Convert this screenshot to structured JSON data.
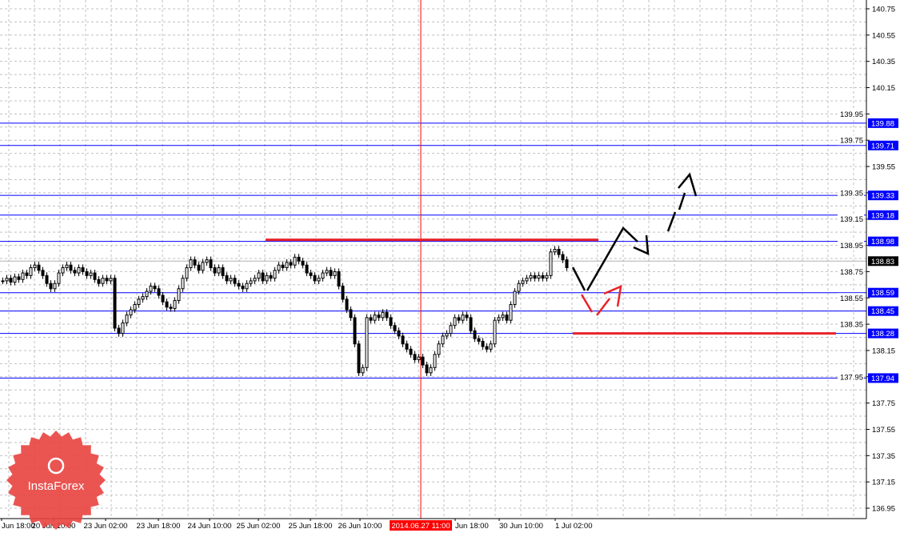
{
  "logo": {
    "text": "InstaForex",
    "color": "#e8423f"
  },
  "chart_data": {
    "type": "candlestick",
    "title": "",
    "y_ticks": [
      "140.75",
      "140.55",
      "140.35",
      "140.15",
      "139.95",
      "139.75",
      "139.55",
      "139.35",
      "139.15",
      "138.95",
      "138.75",
      "138.55",
      "138.35",
      "138.15",
      "137.95",
      "137.75",
      "137.55",
      "137.35",
      "137.15",
      "136.95"
    ],
    "ylim": [
      136.95,
      140.75
    ],
    "x_ticks": [
      "Jun 18:00",
      "20 Jun 10:00",
      "23 Jun 02:00",
      "23 Jun 18:00",
      "24 Jun 10:00",
      "25 Jun 02:00",
      "25 Jun 18:00",
      "26 Jun 10:00",
      "Jun 18:00",
      "30 Jun 10:00",
      "1 Jul 02:00"
    ],
    "cursor_time": "2014.06.27 11:00",
    "current_price": "138.83",
    "levels": [
      "139.88",
      "139.71",
      "139.33",
      "139.18",
      "138.98",
      "138.59",
      "138.45",
      "138.28",
      "137.94"
    ],
    "level_color": "#0000ff",
    "drawn_resistance": 138.98,
    "drawn_support": 138.28,
    "drawing_color": "#e8232a",
    "grid": true,
    "closes": [
      138.68,
      138.7,
      138.67,
      138.71,
      138.69,
      138.74,
      138.72,
      138.78,
      138.8,
      138.76,
      138.72,
      138.66,
      138.62,
      138.66,
      138.74,
      138.78,
      138.8,
      138.76,
      138.74,
      138.78,
      138.75,
      138.72,
      138.74,
      138.69,
      138.66,
      138.7,
      138.68,
      138.7,
      138.32,
      138.28,
      138.36,
      138.42,
      138.46,
      138.5,
      138.54,
      138.56,
      138.6,
      138.64,
      138.62,
      138.57,
      138.52,
      138.48,
      138.47,
      138.53,
      138.62,
      138.7,
      138.78,
      138.84,
      138.8,
      138.76,
      138.82,
      138.84,
      138.78,
      138.74,
      138.78,
      138.72,
      138.68,
      138.7,
      138.66,
      138.64,
      138.62,
      138.66,
      138.68,
      138.7,
      138.74,
      138.68,
      138.72,
      138.7,
      138.76,
      138.8,
      138.78,
      138.82,
      138.8,
      138.86,
      138.83,
      138.8,
      138.74,
      138.72,
      138.68,
      138.7,
      138.74,
      138.76,
      138.72,
      138.75,
      138.64,
      138.54,
      138.46,
      138.4,
      138.2,
      137.98,
      138.02,
      138.4,
      138.38,
      138.42,
      138.4,
      138.44,
      138.4,
      138.34,
      138.3,
      138.26,
      138.2,
      138.16,
      138.12,
      138.08,
      138.1,
      138.04,
      137.98,
      138.02,
      138.12,
      138.2,
      138.26,
      138.28,
      138.34,
      138.4,
      138.38,
      138.42,
      138.4,
      138.3,
      138.24,
      138.22,
      138.18,
      138.16,
      138.2,
      138.38,
      138.4,
      138.42,
      138.38,
      138.5,
      138.6,
      138.66,
      138.68,
      138.7,
      138.72,
      138.7,
      138.72,
      138.7,
      138.72,
      138.9,
      138.92,
      138.88,
      138.84,
      138.78
    ]
  }
}
